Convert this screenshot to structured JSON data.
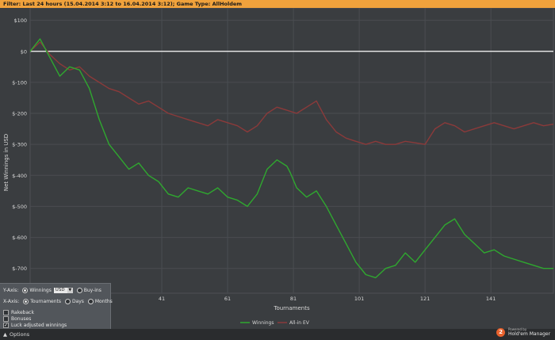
{
  "filter_bar": {
    "text": "Filter: Last 24 hours (15.04.2014 3:12 to 16.04.2014 3:12); Game Type: AllHoldem"
  },
  "controls": {
    "yaxis_label": "Y-Axis:",
    "yaxis_option_winnings": "Winnings",
    "currency_value": "USD",
    "yaxis_option_buyins": "Buy-ins",
    "xaxis_label": "X-Axis:",
    "xaxis_option_tournaments": "Tournaments",
    "xaxis_option_days": "Days",
    "xaxis_option_months": "Months",
    "rakeback_label": "Rakeback",
    "bonuses_label": "Bonuses",
    "luck_label": "Luck adjusted winnings",
    "options_label": "Options",
    "options_arrow": "▲"
  },
  "branding": {
    "powered_by": "Powered by",
    "product": "Hold'em Manager",
    "badge": "2"
  },
  "colors": {
    "winnings": "#2fa82f",
    "allin_ev": "#8b3a3a",
    "zero_line": "#ffffff"
  },
  "chart_data": {
    "type": "line",
    "title": "",
    "xlabel": "Tournaments",
    "ylabel": "Net Winnings in USD",
    "xlim": [
      1,
      160
    ],
    "ylim": [
      -780,
      140
    ],
    "y_ticks": [
      100,
      0,
      -100,
      -200,
      -300,
      -400,
      -500,
      -600,
      -700
    ],
    "y_tick_labels": [
      "$100",
      "$0",
      "$-100",
      "$-200",
      "$-300",
      "$-400",
      "$-500",
      "$-600",
      "$-700"
    ],
    "x_ticks": [
      41,
      61,
      81,
      101,
      121,
      141
    ],
    "x_tick_labels": [
      "41",
      "61",
      "81",
      "101",
      "121",
      "141"
    ],
    "grid": true,
    "legend": "bottom-center",
    "series": [
      {
        "name": "Winnings",
        "color": "#2fa82f",
        "x": [
          1,
          4,
          7,
          10,
          13,
          16,
          19,
          22,
          25,
          28,
          31,
          34,
          37,
          40,
          43,
          46,
          49,
          52,
          55,
          58,
          61,
          64,
          67,
          70,
          73,
          76,
          79,
          80,
          82,
          85,
          88,
          91,
          94,
          97,
          100,
          103,
          106,
          109,
          112,
          115,
          118,
          121,
          124,
          127,
          130,
          133,
          136,
          139,
          142,
          145,
          148,
          151,
          154,
          157,
          160
        ],
        "y": [
          0,
          40,
          -20,
          -80,
          -50,
          -60,
          -120,
          -220,
          -300,
          -340,
          -380,
          -360,
          -400,
          -420,
          -460,
          -470,
          -440,
          -450,
          -460,
          -440,
          -470,
          -480,
          -500,
          -460,
          -380,
          -350,
          -370,
          -390,
          -440,
          -470,
          -450,
          -500,
          -560,
          -620,
          -680,
          -720,
          -730,
          -700,
          -690,
          -650,
          -680,
          -640,
          -600,
          -560,
          -540,
          -590,
          -620,
          -650,
          -640,
          -660,
          -670,
          -680,
          -690,
          -700,
          -700
        ]
      },
      {
        "name": "All-in EV",
        "color": "#8b3a3a",
        "x": [
          1,
          4,
          7,
          10,
          13,
          16,
          19,
          22,
          25,
          28,
          31,
          34,
          37,
          40,
          43,
          46,
          49,
          52,
          55,
          58,
          61,
          64,
          67,
          70,
          73,
          76,
          79,
          82,
          85,
          88,
          91,
          94,
          97,
          100,
          103,
          106,
          109,
          112,
          115,
          118,
          121,
          124,
          127,
          130,
          133,
          136,
          139,
          142,
          145,
          148,
          151,
          154,
          157,
          160
        ],
        "y": [
          0,
          30,
          -10,
          -40,
          -60,
          -50,
          -80,
          -100,
          -120,
          -130,
          -150,
          -170,
          -160,
          -180,
          -200,
          -210,
          -220,
          -230,
          -240,
          -220,
          -230,
          -240,
          -260,
          -240,
          -200,
          -180,
          -190,
          -200,
          -180,
          -160,
          -220,
          -260,
          -280,
          -290,
          -300,
          -290,
          -300,
          -300,
          -290,
          -295,
          -300,
          -250,
          -230,
          -240,
          -260,
          -250,
          -240,
          -230,
          -240,
          -250,
          -240,
          -230,
          -240,
          -235
        ]
      }
    ]
  }
}
